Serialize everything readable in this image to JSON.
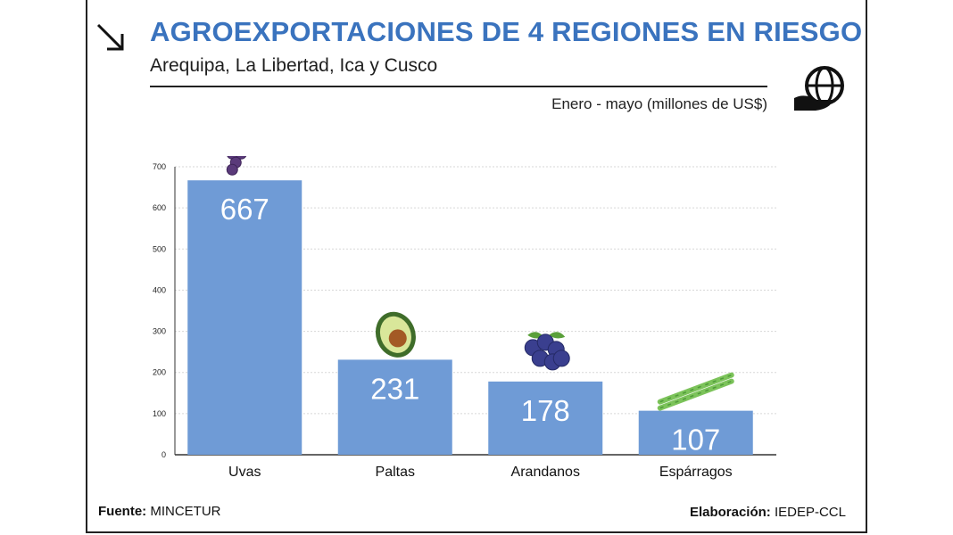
{
  "header": {
    "title": "AGROEXPORTACIONES DE 4 REGIONES EN RIESGO",
    "subtitle": "Arequipa, La Libertad, Ica y Cusco",
    "period": "Enero - mayo (millones de US$)"
  },
  "footer": {
    "source_label": "Fuente:",
    "source_value": "MINCETUR",
    "credit_label": "Elaboración:",
    "credit_value": "IEDEP-CCL"
  },
  "icons": [
    "arrow-down-right-icon",
    "globe-hand-icon",
    "grapes-icon",
    "avocado-icon",
    "blueberries-icon",
    "asparagus-icon"
  ],
  "colors": {
    "title": "#3a73be",
    "bar": "#6f9bd6",
    "text": "#1e1e1e"
  },
  "chart_data": {
    "type": "bar",
    "title": "AGROEXPORTACIONES DE 4 REGIONES EN RIESGO",
    "subtitle": "Arequipa, La Libertad, Ica y Cusco",
    "ylabel": "",
    "xlabel": "",
    "categories": [
      "Uvas",
      "Paltas",
      "Arandanos",
      "Espárragos"
    ],
    "values": [
      667,
      231,
      178,
      107
    ],
    "data_labels": [
      "667",
      "231",
      "178",
      "107"
    ],
    "yticks": [
      0,
      100,
      200,
      300,
      400,
      500,
      600,
      700
    ],
    "ylim": [
      0,
      700
    ],
    "grid": true,
    "legend": "none"
  }
}
